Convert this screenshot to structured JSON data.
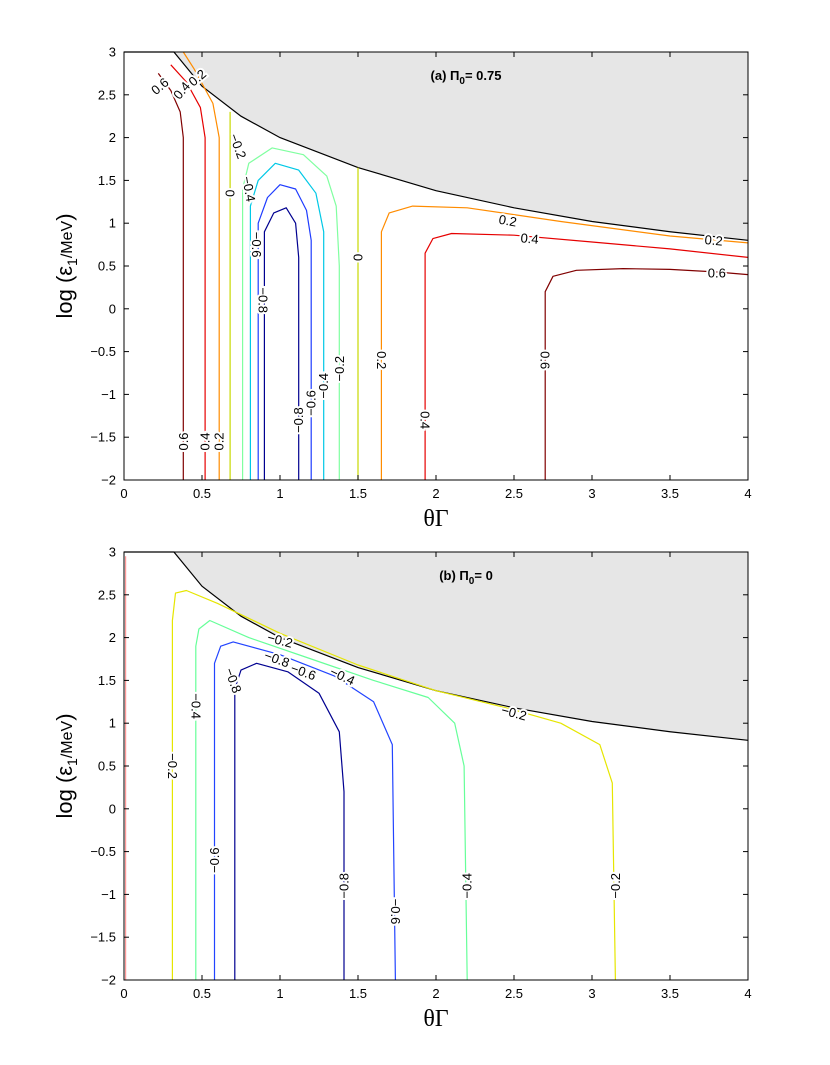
{
  "chart_data": [
    {
      "type": "line",
      "subtype": "contour",
      "title": "(a) Π0= 0.75",
      "title_parts": {
        "prefix": "(a) Π",
        "sub": "0",
        "suffix": "= 0.75"
      },
      "xlabel": "θΓ",
      "ylabel": "log (ε1/MeV)",
      "ylabel_parts": {
        "main": "log (ε",
        "sub": "1",
        "small": "/MeV",
        "close": ")"
      },
      "xlim": [
        0,
        4
      ],
      "ylim": [
        -2,
        3
      ],
      "xticks": [
        "0",
        "0.5",
        "1",
        "1.5",
        "2",
        "2.5",
        "3",
        "3.5",
        "4"
      ],
      "yticks": [
        "-2",
        "-1.5",
        "-1",
        "-0.5",
        "0",
        "0.5",
        "1",
        "1.5",
        "2",
        "2.5",
        "3"
      ],
      "forbidden_region": {
        "boundary": [
          [
            0,
            3
          ],
          [
            0.32,
            3
          ],
          [
            0.5,
            2.6
          ],
          [
            0.75,
            2.25
          ],
          [
            1.0,
            2.0
          ],
          [
            1.5,
            1.65
          ],
          [
            2.0,
            1.38
          ],
          [
            2.5,
            1.18
          ],
          [
            3.0,
            1.02
          ],
          [
            3.5,
            0.9
          ],
          [
            4.0,
            0.8
          ]
        ],
        "color": "#e6e6e6"
      },
      "series": [
        {
          "name": "0.6 (left)",
          "level": 0.6,
          "color": "#800000",
          "points": [
            [
              0.38,
              -2
            ],
            [
              0.38,
              2.0
            ],
            [
              0.36,
              2.3
            ],
            [
              0.3,
              2.55
            ],
            [
              0.22,
              2.75
            ]
          ]
        },
        {
          "name": "0.4 (left)",
          "level": 0.4,
          "color": "#e60000",
          "points": [
            [
              0.52,
              -2
            ],
            [
              0.52,
              2.0
            ],
            [
              0.49,
              2.35
            ],
            [
              0.4,
              2.65
            ],
            [
              0.3,
              2.85
            ]
          ]
        },
        {
          "name": "0.2 (left)",
          "level": 0.2,
          "color": "#ff8c00",
          "points": [
            [
              0.61,
              -2
            ],
            [
              0.61,
              2.0
            ],
            [
              0.57,
              2.4
            ],
            [
              0.45,
              2.8
            ],
            [
              0.38,
              3.0
            ]
          ]
        },
        {
          "name": "0 (left)",
          "level": 0,
          "color": "#c8d800",
          "points": [
            [
              0.68,
              -2
            ],
            [
              0.68,
              2.3
            ]
          ]
        },
        {
          "name": "-0.2",
          "level": -0.2,
          "color": "#80ffa0",
          "points": [
            [
              0.76,
              -2
            ],
            [
              0.76,
              1.4
            ],
            [
              0.8,
              1.7
            ],
            [
              0.95,
              1.88
            ],
            [
              1.15,
              1.8
            ],
            [
              1.3,
              1.55
            ],
            [
              1.36,
              1.2
            ],
            [
              1.38,
              0.5
            ],
            [
              1.38,
              -2
            ]
          ]
        },
        {
          "name": "-0.4",
          "level": -0.4,
          "color": "#00c8e6",
          "points": [
            [
              0.81,
              -2
            ],
            [
              0.81,
              1.2
            ],
            [
              0.86,
              1.5
            ],
            [
              0.97,
              1.7
            ],
            [
              1.12,
              1.62
            ],
            [
              1.23,
              1.35
            ],
            [
              1.28,
              0.9
            ],
            [
              1.28,
              -2
            ]
          ]
        },
        {
          "name": "-0.6",
          "level": -0.6,
          "color": "#1e3cff",
          "points": [
            [
              0.86,
              -2
            ],
            [
              0.86,
              1.0
            ],
            [
              0.92,
              1.3
            ],
            [
              1.0,
              1.45
            ],
            [
              1.1,
              1.4
            ],
            [
              1.17,
              1.15
            ],
            [
              1.2,
              0.8
            ],
            [
              1.2,
              -2
            ]
          ]
        },
        {
          "name": "-0.8",
          "level": -0.8,
          "color": "#000090",
          "points": [
            [
              0.9,
              -2
            ],
            [
              0.9,
              0.9
            ],
            [
              0.96,
              1.12
            ],
            [
              1.04,
              1.18
            ],
            [
              1.1,
              1.0
            ],
            [
              1.12,
              0.6
            ],
            [
              1.12,
              -2
            ]
          ]
        },
        {
          "name": "0 (right)",
          "level": 0,
          "color": "#c8d800",
          "points": [
            [
              1.5,
              -2
            ],
            [
              1.5,
              1.65
            ]
          ]
        },
        {
          "name": "0.2 (right)",
          "level": 0.2,
          "color": "#ff8c00",
          "points": [
            [
              1.65,
              -2
            ],
            [
              1.65,
              0.9
            ],
            [
              1.7,
              1.12
            ],
            [
              1.85,
              1.2
            ],
            [
              2.2,
              1.18
            ],
            [
              2.8,
              1.02
            ],
            [
              3.5,
              0.85
            ],
            [
              4.0,
              0.77
            ]
          ]
        },
        {
          "name": "0.4 (right)",
          "level": 0.4,
          "color": "#e60000",
          "points": [
            [
              1.93,
              -2
            ],
            [
              1.93,
              0.65
            ],
            [
              1.98,
              0.82
            ],
            [
              2.1,
              0.88
            ],
            [
              2.5,
              0.86
            ],
            [
              3.0,
              0.78
            ],
            [
              3.5,
              0.7
            ],
            [
              4.0,
              0.6
            ]
          ]
        },
        {
          "name": "0.6 (right)",
          "level": 0.6,
          "color": "#800000",
          "points": [
            [
              2.7,
              -2
            ],
            [
              2.7,
              0.2
            ],
            [
              2.75,
              0.38
            ],
            [
              2.9,
              0.45
            ],
            [
              3.2,
              0.47
            ],
            [
              3.5,
              0.46
            ],
            [
              3.8,
              0.43
            ],
            [
              4.0,
              0.4
            ]
          ]
        }
      ],
      "annotations": [
        {
          "text": "0.6",
          "x": 0.23,
          "y": 2.6,
          "angle": 40
        },
        {
          "text": "0.4",
          "x": 0.37,
          "y": 2.55,
          "angle": 50
        },
        {
          "text": "0.2",
          "x": 0.47,
          "y": 2.7,
          "angle": 40
        },
        {
          "text": "-0.2",
          "x": 0.73,
          "y": 1.9,
          "angle": -70
        },
        {
          "text": "0",
          "x": 0.68,
          "y": 1.35,
          "angle": -90
        },
        {
          "text": "-0.4",
          "x": 0.8,
          "y": 1.4,
          "angle": -80
        },
        {
          "text": "-0.6",
          "x": 0.85,
          "y": 0.75,
          "angle": -90
        },
        {
          "text": "-0.8",
          "x": 0.89,
          "y": 0.1,
          "angle": -90
        },
        {
          "text": "0",
          "x": 1.5,
          "y": 0.6,
          "angle": 90
        },
        {
          "text": "0.2",
          "x": 2.46,
          "y": 1.03,
          "angle": -10
        },
        {
          "text": "0.4",
          "x": 2.6,
          "y": 0.82,
          "angle": -5
        },
        {
          "text": "0.6",
          "x": 3.8,
          "y": 0.42,
          "angle": 0
        },
        {
          "text": "0.2",
          "x": 3.78,
          "y": 0.8,
          "angle": -5
        },
        {
          "text": "0.6",
          "x": 2.7,
          "y": -0.6,
          "angle": -90
        },
        {
          "text": "0.2",
          "x": 1.65,
          "y": -0.6,
          "angle": -90
        },
        {
          "text": "-0.2",
          "x": 1.38,
          "y": -0.7,
          "angle": 90
        },
        {
          "text": "-0.4",
          "x": 1.28,
          "y": -0.9,
          "angle": 90
        },
        {
          "text": "-0.6",
          "x": 1.2,
          "y": -1.1,
          "angle": 90
        },
        {
          "text": "-0.8",
          "x": 1.12,
          "y": -1.3,
          "angle": 90
        },
        {
          "text": "0.4",
          "x": 1.93,
          "y": -1.3,
          "angle": -90
        },
        {
          "text": "0.6",
          "x": 0.38,
          "y": -1.55,
          "angle": 90
        },
        {
          "text": "0.4",
          "x": 0.52,
          "y": -1.55,
          "angle": 90
        },
        {
          "text": "0.2",
          "x": 0.61,
          "y": -1.55,
          "angle": 90
        }
      ]
    },
    {
      "type": "line",
      "subtype": "contour",
      "title": "(b) Π0= 0",
      "title_parts": {
        "prefix": "(b) Π",
        "sub": "0",
        "suffix": "= 0"
      },
      "xlabel": "θΓ",
      "ylabel": "log (ε1/MeV)",
      "ylabel_parts": {
        "main": "log (ε",
        "sub": "1",
        "small": "/MeV",
        "close": ")"
      },
      "xlim": [
        0,
        4
      ],
      "ylim": [
        -2,
        3
      ],
      "xticks": [
        "0",
        "0.5",
        "1",
        "1.5",
        "2",
        "2.5",
        "3",
        "3.5",
        "4"
      ],
      "yticks": [
        "-2",
        "-1.5",
        "-1",
        "-0.5",
        "0",
        "0.5",
        "1",
        "1.5",
        "2",
        "2.5",
        "3"
      ],
      "forbidden_region": {
        "boundary": [
          [
            0,
            3
          ],
          [
            0.32,
            3
          ],
          [
            0.5,
            2.6
          ],
          [
            0.75,
            2.25
          ],
          [
            1.0,
            2.0
          ],
          [
            1.5,
            1.65
          ],
          [
            2.0,
            1.38
          ],
          [
            2.5,
            1.18
          ],
          [
            3.0,
            1.02
          ],
          [
            3.5,
            0.9
          ],
          [
            4.0,
            0.8
          ]
        ],
        "color": "#e6e6e6"
      },
      "series": [
        {
          "name": "0 (edge)",
          "level": 0,
          "color": "#ff9999",
          "points": [
            [
              0.01,
              -2
            ],
            [
              0.01,
              2.95
            ]
          ]
        },
        {
          "name": "-0.2",
          "level": -0.2,
          "color": "#e6e600",
          "points": [
            [
              0.31,
              -2
            ],
            [
              0.31,
              2.2
            ],
            [
              0.33,
              2.52
            ],
            [
              0.4,
              2.55
            ],
            [
              0.6,
              2.4
            ],
            [
              1.0,
              2.05
            ],
            [
              1.5,
              1.68
            ],
            [
              2.0,
              1.38
            ],
            [
              2.45,
              1.18
            ],
            [
              2.8,
              1.0
            ],
            [
              3.05,
              0.75
            ],
            [
              3.13,
              0.3
            ],
            [
              3.15,
              -2
            ]
          ]
        },
        {
          "name": "-0.4",
          "level": -0.4,
          "color": "#66ff99",
          "points": [
            [
              0.46,
              -2
            ],
            [
              0.46,
              1.9
            ],
            [
              0.48,
              2.1
            ],
            [
              0.55,
              2.2
            ],
            [
              0.8,
              2.0
            ],
            [
              1.2,
              1.75
            ],
            [
              1.6,
              1.5
            ],
            [
              1.95,
              1.3
            ],
            [
              2.12,
              1.0
            ],
            [
              2.18,
              0.5
            ],
            [
              2.2,
              -2
            ]
          ]
        },
        {
          "name": "-0.6",
          "level": -0.6,
          "color": "#2244ff",
          "points": [
            [
              0.58,
              -2
            ],
            [
              0.58,
              1.7
            ],
            [
              0.62,
              1.9
            ],
            [
              0.7,
              1.95
            ],
            [
              1.0,
              1.8
            ],
            [
              1.35,
              1.55
            ],
            [
              1.6,
              1.25
            ],
            [
              1.72,
              0.75
            ],
            [
              1.74,
              -2
            ]
          ]
        },
        {
          "name": "-0.8",
          "level": -0.8,
          "color": "#000090",
          "points": [
            [
              0.71,
              -2
            ],
            [
              0.71,
              1.4
            ],
            [
              0.75,
              1.62
            ],
            [
              0.85,
              1.7
            ],
            [
              1.05,
              1.6
            ],
            [
              1.25,
              1.35
            ],
            [
              1.38,
              0.9
            ],
            [
              1.41,
              0.2
            ],
            [
              1.41,
              -2
            ]
          ]
        }
      ],
      "annotations": [
        {
          "text": "-0.2",
          "x": 0.31,
          "y": 0.5,
          "angle": -90
        },
        {
          "text": "-0.4",
          "x": 0.46,
          "y": 1.2,
          "angle": -90
        },
        {
          "text": "-0.6",
          "x": 0.58,
          "y": -0.6,
          "angle": 90
        },
        {
          "text": "-0.8",
          "x": 0.7,
          "y": 1.5,
          "angle": -70
        },
        {
          "text": "-0.2",
          "x": 1.0,
          "y": 1.97,
          "angle": -15
        },
        {
          "text": "-0.6",
          "x": 1.15,
          "y": 1.6,
          "angle": -20
        },
        {
          "text": "-0.8",
          "x": 0.98,
          "y": 1.75,
          "angle": -20
        },
        {
          "text": "-0.4",
          "x": 1.4,
          "y": 1.55,
          "angle": -25
        },
        {
          "text": "-0.8",
          "x": 1.41,
          "y": -0.9,
          "angle": 90
        },
        {
          "text": "-0.6",
          "x": 1.74,
          "y": -1.2,
          "angle": -90
        },
        {
          "text": "-0.4",
          "x": 2.2,
          "y": -0.9,
          "angle": 90
        },
        {
          "text": "-0.2",
          "x": 2.5,
          "y": 1.12,
          "angle": -15
        },
        {
          "text": "-0.2",
          "x": 3.15,
          "y": -0.9,
          "angle": 90
        }
      ]
    }
  ]
}
